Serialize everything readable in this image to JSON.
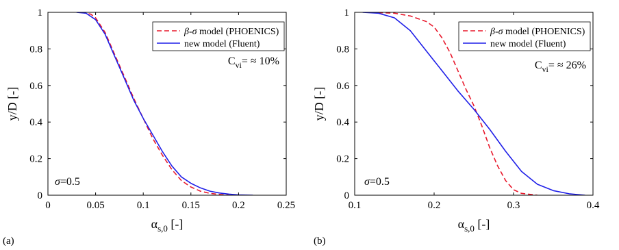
{
  "chart_data": [
    {
      "type": "line",
      "panel_label": "(a)",
      "xlabel": "α",
      "xlabel_sub": "s,0",
      "xlabel_unit": "[-]",
      "ylabel": "y/D [-]",
      "xlim": [
        0,
        0.25
      ],
      "ylim": [
        0,
        1
      ],
      "xticks": [
        "0",
        "0.05",
        "0.1",
        "0.15",
        "0.2",
        "0.25"
      ],
      "xtick_values": [
        0,
        0.05,
        0.1,
        0.15,
        0.2,
        0.25
      ],
      "yticks": [
        "0",
        "0.2",
        "0.4",
        "0.6",
        "0.8",
        "1"
      ],
      "ytick_values": [
        0,
        0.2,
        0.4,
        0.6,
        0.8,
        1
      ],
      "legend_position": "top-right",
      "annotation": {
        "text_main": "C",
        "text_sub": "vi",
        "text_rest": "= ≈ 10%"
      },
      "sigma_label": {
        "symbol": "σ",
        "value": "=0.5"
      },
      "series": [
        {
          "name_symbols": "β-σ",
          "name_rest": " model (PHOENICS)",
          "style": "dashed",
          "color": "#e8192c",
          "points": [
            [
              0.035,
              1.0
            ],
            [
              0.045,
              0.99
            ],
            [
              0.05,
              0.97
            ],
            [
              0.06,
              0.89
            ],
            [
              0.07,
              0.77
            ],
            [
              0.08,
              0.65
            ],
            [
              0.09,
              0.53
            ],
            [
              0.1,
              0.42
            ],
            [
              0.11,
              0.31
            ],
            [
              0.12,
              0.22
            ],
            [
              0.13,
              0.14
            ],
            [
              0.14,
              0.08
            ],
            [
              0.15,
              0.045
            ],
            [
              0.16,
              0.022
            ],
            [
              0.17,
              0.01
            ],
            [
              0.18,
              0.004
            ],
            [
              0.19,
              0.0
            ]
          ]
        },
        {
          "name_symbols": "",
          "name_rest": "new model (Fluent)",
          "style": "solid",
          "color": "#1f1fe8",
          "points": [
            [
              0.03,
              1.0
            ],
            [
              0.04,
              0.995
            ],
            [
              0.05,
              0.96
            ],
            [
              0.06,
              0.88
            ],
            [
              0.07,
              0.76
            ],
            [
              0.08,
              0.64
            ],
            [
              0.09,
              0.52
            ],
            [
              0.1,
              0.42
            ],
            [
              0.11,
              0.33
            ],
            [
              0.12,
              0.24
            ],
            [
              0.13,
              0.16
            ],
            [
              0.14,
              0.1
            ],
            [
              0.15,
              0.065
            ],
            [
              0.16,
              0.04
            ],
            [
              0.17,
              0.022
            ],
            [
              0.18,
              0.012
            ],
            [
              0.19,
              0.006
            ],
            [
              0.2,
              0.002
            ],
            [
              0.215,
              0.0
            ]
          ]
        }
      ]
    },
    {
      "type": "line",
      "panel_label": "(b)",
      "xlabel": "α",
      "xlabel_sub": "s,0",
      "xlabel_unit": "[-]",
      "ylabel": "y/D [-]",
      "xlim": [
        0.1,
        0.4
      ],
      "ylim": [
        0,
        1
      ],
      "xticks": [
        "0.1",
        "0.2",
        "0.3",
        "0.4"
      ],
      "xtick_values": [
        0.1,
        0.2,
        0.3,
        0.4
      ],
      "yticks": [
        "0",
        "0.2",
        "0.4",
        "0.6",
        "0.8",
        "1"
      ],
      "ytick_values": [
        0,
        0.2,
        0.4,
        0.6,
        0.8,
        1
      ],
      "legend_position": "top-right",
      "annotation": {
        "text_main": "C",
        "text_sub": "vi",
        "text_rest": "= ≈ 26%"
      },
      "sigma_label": {
        "symbol": "σ",
        "value": "=0.5"
      },
      "series": [
        {
          "name_symbols": "β-σ",
          "name_rest": " model (PHOENICS)",
          "style": "dashed",
          "color": "#e8192c",
          "points": [
            [
              0.12,
              1.0
            ],
            [
              0.15,
              0.995
            ],
            [
              0.17,
              0.98
            ],
            [
              0.19,
              0.95
            ],
            [
              0.2,
              0.92
            ],
            [
              0.21,
              0.86
            ],
            [
              0.22,
              0.78
            ],
            [
              0.23,
              0.68
            ],
            [
              0.24,
              0.58
            ],
            [
              0.25,
              0.49
            ],
            [
              0.26,
              0.38
            ],
            [
              0.27,
              0.26
            ],
            [
              0.28,
              0.16
            ],
            [
              0.29,
              0.08
            ],
            [
              0.3,
              0.03
            ],
            [
              0.31,
              0.01
            ],
            [
              0.33,
              0.0
            ]
          ]
        },
        {
          "name_symbols": "",
          "name_rest": "new model (Fluent)",
          "style": "solid",
          "color": "#1f1fe8",
          "points": [
            [
              0.11,
              1.0
            ],
            [
              0.13,
              0.995
            ],
            [
              0.15,
              0.97
            ],
            [
              0.17,
              0.9
            ],
            [
              0.19,
              0.79
            ],
            [
              0.21,
              0.68
            ],
            [
              0.23,
              0.57
            ],
            [
              0.25,
              0.47
            ],
            [
              0.27,
              0.36
            ],
            [
              0.29,
              0.24
            ],
            [
              0.31,
              0.13
            ],
            [
              0.33,
              0.06
            ],
            [
              0.35,
              0.025
            ],
            [
              0.37,
              0.008
            ],
            [
              0.39,
              0.0
            ]
          ]
        }
      ]
    }
  ]
}
